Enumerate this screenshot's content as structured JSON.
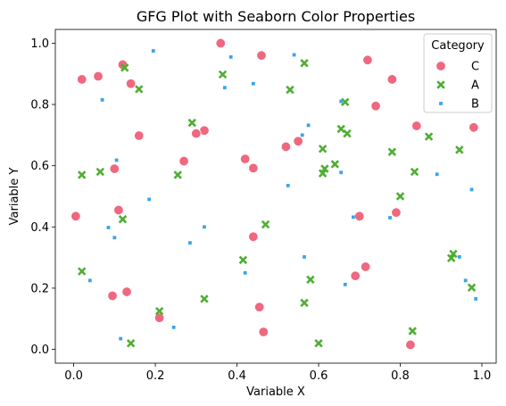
{
  "chart_data": {
    "type": "scatter",
    "title": "GFG Plot with Seaborn Color Properties",
    "xlabel": "Variable X",
    "ylabel": "Variable Y",
    "xlim": [
      -0.045,
      1.035
    ],
    "ylim": [
      -0.045,
      1.045
    ],
    "xticks": [
      "0.0",
      "0.2",
      "0.4",
      "0.6",
      "0.8",
      "1.0"
    ],
    "yticks": [
      "0.0",
      "0.2",
      "0.4",
      "0.6",
      "0.8",
      "1.0"
    ],
    "grid": false,
    "legend": {
      "title": "Category",
      "placement": "top-right"
    },
    "series": [
      {
        "name": "C",
        "marker": "circle",
        "color": "#f0677f",
        "points": [
          [
            0.36,
            1.0
          ],
          [
            0.46,
            0.96
          ],
          [
            0.72,
            0.945
          ],
          [
            0.12,
            0.93
          ],
          [
            0.06,
            0.892
          ],
          [
            0.02,
            0.882
          ],
          [
            0.14,
            0.868
          ],
          [
            0.78,
            0.882
          ],
          [
            0.74,
            0.795
          ],
          [
            0.84,
            0.73
          ],
          [
            0.98,
            0.725
          ],
          [
            0.32,
            0.715
          ],
          [
            0.3,
            0.705
          ],
          [
            0.16,
            0.698
          ],
          [
            0.55,
            0.68
          ],
          [
            0.52,
            0.662
          ],
          [
            0.42,
            0.622
          ],
          [
            0.27,
            0.615
          ],
          [
            0.44,
            0.592
          ],
          [
            0.1,
            0.59
          ],
          [
            0.11,
            0.455
          ],
          [
            0.005,
            0.435
          ],
          [
            0.7,
            0.435
          ],
          [
            0.79,
            0.447
          ],
          [
            0.44,
            0.368
          ],
          [
            0.715,
            0.27
          ],
          [
            0.69,
            0.24
          ],
          [
            0.13,
            0.188
          ],
          [
            0.095,
            0.175
          ],
          [
            0.455,
            0.138
          ],
          [
            0.21,
            0.103
          ],
          [
            0.465,
            0.057
          ],
          [
            0.825,
            0.015
          ]
        ]
      },
      {
        "name": "A",
        "marker": "x",
        "color": "#4fae32",
        "points": [
          [
            0.125,
            0.92
          ],
          [
            0.365,
            0.898
          ],
          [
            0.565,
            0.935
          ],
          [
            0.16,
            0.85
          ],
          [
            0.53,
            0.848
          ],
          [
            0.665,
            0.808
          ],
          [
            0.29,
            0.74
          ],
          [
            0.655,
            0.72
          ],
          [
            0.67,
            0.705
          ],
          [
            0.87,
            0.695
          ],
          [
            0.61,
            0.655
          ],
          [
            0.945,
            0.652
          ],
          [
            0.78,
            0.645
          ],
          [
            0.64,
            0.605
          ],
          [
            0.615,
            0.59
          ],
          [
            0.61,
            0.575
          ],
          [
            0.835,
            0.58
          ],
          [
            0.065,
            0.58
          ],
          [
            0.255,
            0.57
          ],
          [
            0.02,
            0.57
          ],
          [
            0.8,
            0.5
          ],
          [
            0.12,
            0.425
          ],
          [
            0.47,
            0.408
          ],
          [
            0.415,
            0.292
          ],
          [
            0.93,
            0.312
          ],
          [
            0.925,
            0.298
          ],
          [
            0.02,
            0.255
          ],
          [
            0.58,
            0.228
          ],
          [
            0.975,
            0.202
          ],
          [
            0.32,
            0.165
          ],
          [
            0.565,
            0.152
          ],
          [
            0.21,
            0.125
          ],
          [
            0.83,
            0.06
          ],
          [
            0.14,
            0.02
          ],
          [
            0.6,
            0.02
          ]
        ]
      },
      {
        "name": "B",
        "marker": "square",
        "color": "#3ba3ec",
        "points": [
          [
            0.195,
            0.975
          ],
          [
            0.54,
            0.962
          ],
          [
            0.385,
            0.955
          ],
          [
            0.44,
            0.868
          ],
          [
            0.37,
            0.855
          ],
          [
            0.07,
            0.815
          ],
          [
            0.655,
            0.81
          ],
          [
            0.575,
            0.732
          ],
          [
            0.56,
            0.7
          ],
          [
            0.105,
            0.618
          ],
          [
            0.655,
            0.578
          ],
          [
            0.89,
            0.572
          ],
          [
            0.525,
            0.535
          ],
          [
            0.975,
            0.522
          ],
          [
            0.185,
            0.49
          ],
          [
            0.685,
            0.432
          ],
          [
            0.775,
            0.43
          ],
          [
            0.32,
            0.4
          ],
          [
            0.085,
            0.398
          ],
          [
            0.1,
            0.365
          ],
          [
            0.285,
            0.348
          ],
          [
            0.565,
            0.302
          ],
          [
            0.945,
            0.302
          ],
          [
            0.42,
            0.25
          ],
          [
            0.04,
            0.225
          ],
          [
            0.96,
            0.225
          ],
          [
            0.665,
            0.212
          ],
          [
            0.985,
            0.165
          ],
          [
            0.245,
            0.072
          ],
          [
            0.115,
            0.035
          ]
        ]
      }
    ]
  }
}
